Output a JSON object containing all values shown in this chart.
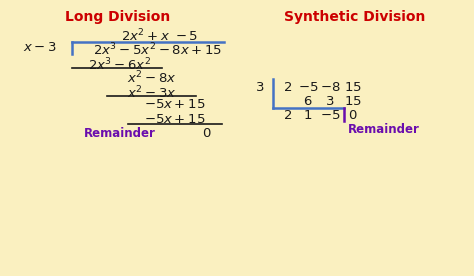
{
  "bg_color": "#FAF3DC",
  "title_color_red": "#CC0000",
  "text_color_black": "#1A1A1A",
  "text_color_purple": "#6A0DAD",
  "line_color_blue": "#4472C4",
  "line_color_purple": "#6A0DAD",
  "figsize": [
    4.74,
    2.76
  ],
  "dpi": 100,
  "left_title": "Long Division",
  "right_title": "Synthetic Division",
  "remainder_label": "Remainder"
}
